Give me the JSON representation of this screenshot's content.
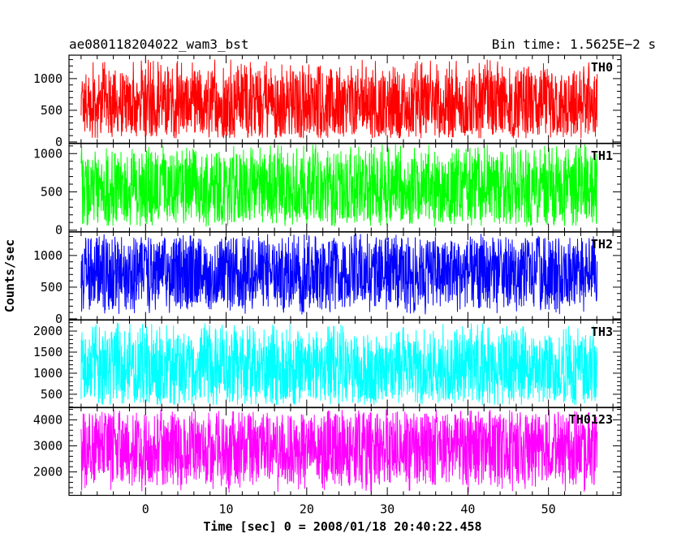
{
  "header": {
    "left_title": "ae080118204022_wam3_bst",
    "right_title": "Bin time: 1.5625E−2 s"
  },
  "chart_data": {
    "type": "line",
    "title": "ae080118204022_wam3_bst",
    "subtitle": "Bin time: 1.5625E−2 s",
    "xlabel": "Time [sec] 0 = 2008/01/18 20:40:22.458",
    "ylabel": "Counts/sec",
    "xlim": [
      -9.5,
      59
    ],
    "x_data_range": [
      -8,
      56
    ],
    "xticks": [
      0,
      10,
      20,
      30,
      40,
      50
    ],
    "xtick_labels": [
      "0",
      "10",
      "20",
      "30",
      "40",
      "50"
    ],
    "grid": false,
    "shared_x_axis": true,
    "panels": [
      {
        "name": "TH0",
        "color": "#ff0000",
        "ylim": [
          -20,
          1370
        ],
        "yticks": [
          0,
          500,
          1000
        ],
        "ytick_labels": [
          "0",
          "500",
          "1000"
        ],
        "mean": 600,
        "min": 60,
        "max": 1300
      },
      {
        "name": "TH1",
        "color": "#00ff00",
        "ylim": [
          -20,
          1130
        ],
        "yticks": [
          0,
          500,
          1000
        ],
        "ytick_labels": [
          "0",
          "500",
          "1000"
        ],
        "mean": 540,
        "min": 40,
        "max": 1120
      },
      {
        "name": "TH2",
        "color": "#0000ff",
        "ylim": [
          -20,
          1370
        ],
        "yticks": [
          0,
          500,
          1000
        ],
        "ytick_labels": [
          "0",
          "500",
          "1000"
        ],
        "mean": 720,
        "min": 60,
        "max": 1350
      },
      {
        "name": "TH3",
        "color": "#00ffff",
        "ylim": [
          180,
          2270
        ],
        "yticks": [
          500,
          1000,
          1500,
          2000
        ],
        "ytick_labels": [
          "500",
          "1000",
          "1500",
          "2000"
        ],
        "mean": 1100,
        "min": 250,
        "max": 2200
      },
      {
        "name": "TH0123",
        "color": "#ff00ff",
        "ylim": [
          1100,
          4480
        ],
        "yticks": [
          2000,
          3000,
          4000
        ],
        "ytick_labels": [
          "2000",
          "3000",
          "4000"
        ],
        "mean": 2900,
        "min": 1200,
        "max": 4400
      }
    ]
  }
}
